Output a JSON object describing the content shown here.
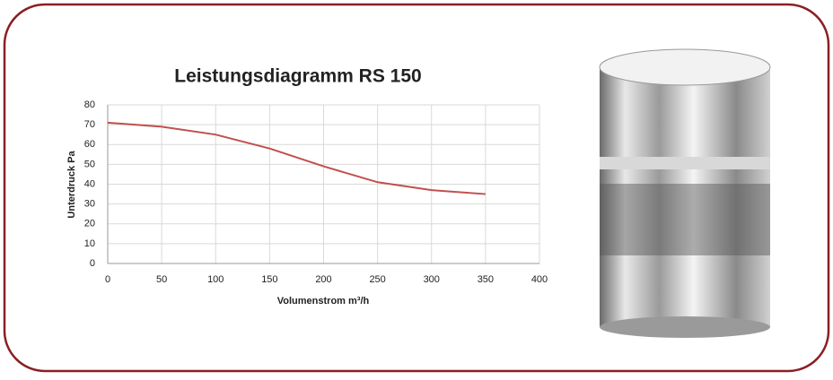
{
  "chart_data": {
    "type": "line",
    "title": "Leistungsdiagramm RS 150",
    "x_label": "Volumenstrom m³/h",
    "y_label": "Unterdruck Pa",
    "x": [
      0,
      50,
      100,
      150,
      200,
      250,
      300,
      350
    ],
    "values": [
      71,
      69,
      65,
      58,
      49,
      41,
      37,
      35
    ],
    "color": "#c0504d",
    "xlim": [
      0,
      400
    ],
    "xticks": [
      0,
      50,
      100,
      150,
      200,
      250,
      300,
      350,
      400
    ],
    "ylim": [
      0,
      80
    ],
    "yticks": [
      0,
      10,
      20,
      30,
      40,
      50,
      60,
      70,
      80
    ],
    "grid": true
  }
}
